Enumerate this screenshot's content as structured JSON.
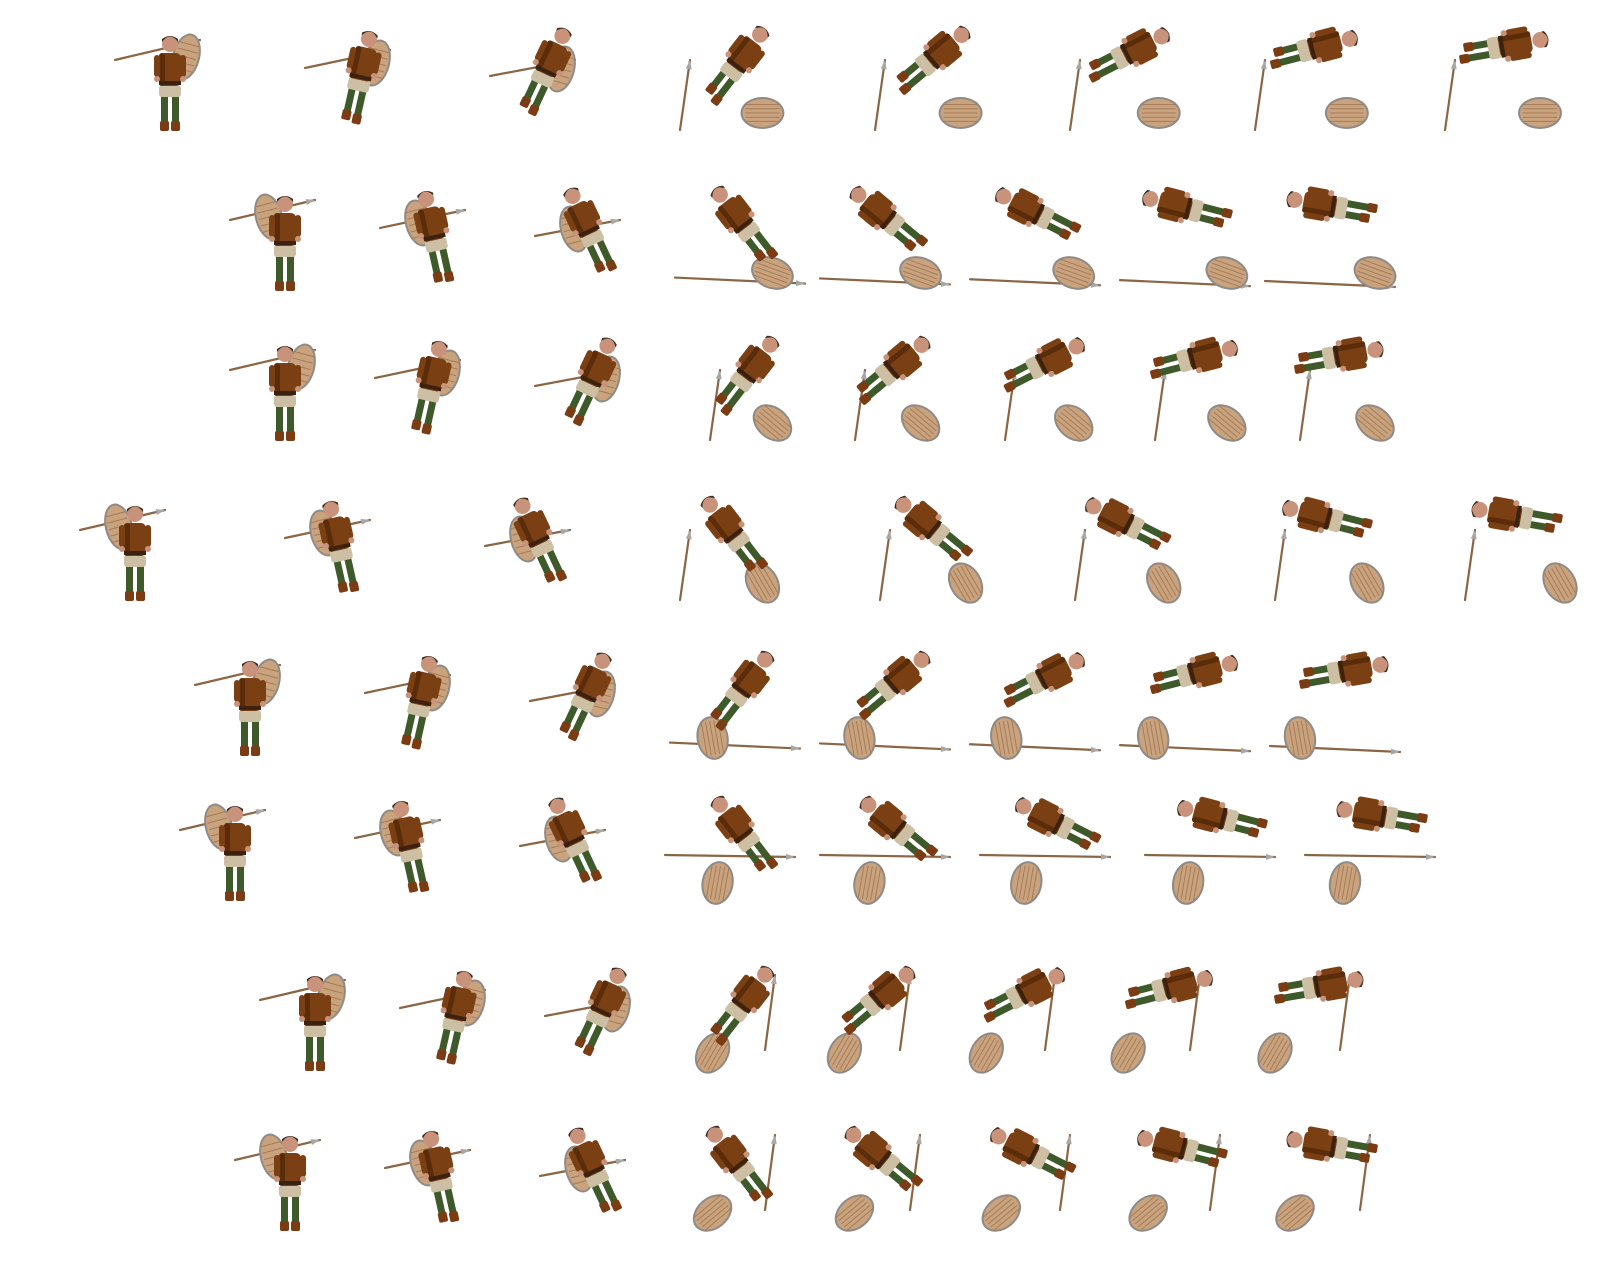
{
  "sheet": {
    "kind": "sprite-sheet",
    "subject": "spearman-with-shield",
    "animation": "death",
    "frames_per_direction": 8,
    "directions": 8,
    "colors": {
      "tunic": "#7a3f12",
      "tunic_shade": "#5a2c0a",
      "belt": "#3b2210",
      "kilt": "#cdbfa4",
      "trousers": "#3e5a2a",
      "boots": "#7b3c13",
      "skin": "#c8937a",
      "hair": "#3b2a1f",
      "spear": "#8a6644",
      "spear_tip": "#a7a7a7",
      "shield_wood": "#c9a27e",
      "shield_rim": "#8f8a86",
      "background": "#ffffff"
    },
    "rows": [
      {
        "direction": "row-1",
        "facing_hint": "south-west",
        "frames": 8
      },
      {
        "direction": "row-2",
        "facing_hint": "west",
        "frames": 8
      },
      {
        "direction": "row-3",
        "facing_hint": "north-west",
        "frames": 8
      },
      {
        "direction": "row-4",
        "facing_hint": "north",
        "frames": 8
      },
      {
        "direction": "row-5",
        "facing_hint": "north-east",
        "frames": 8
      },
      {
        "direction": "row-6",
        "facing_hint": "east",
        "frames": 8
      },
      {
        "direction": "row-7",
        "facing_hint": "south-east",
        "frames": 8
      },
      {
        "direction": "row-8",
        "facing_hint": "south",
        "frames": 8
      }
    ]
  }
}
